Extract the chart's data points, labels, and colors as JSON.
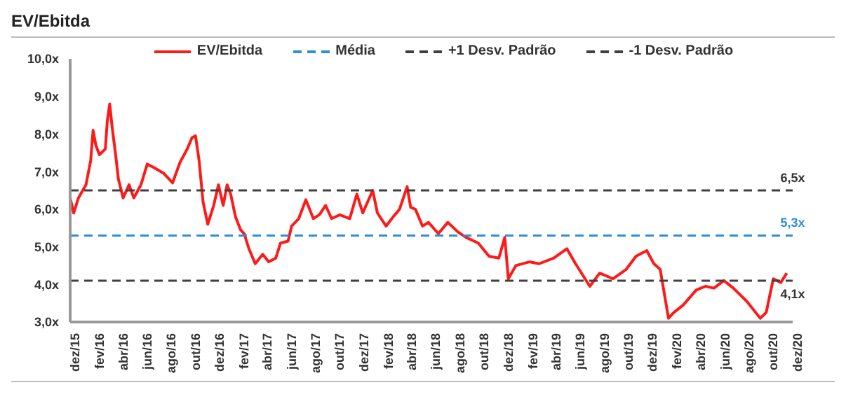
{
  "chart_data": {
    "type": "line",
    "title": "EV/Ebitda",
    "legend": "top",
    "grid": false,
    "line_style": "solid",
    "marker": "none",
    "xlim": [
      "2015-12-01",
      "2020-12-01"
    ],
    "xticks": [
      {
        "value": "2015-12",
        "label": "dez/15"
      },
      {
        "value": "2016-02",
        "label": "fev/16"
      },
      {
        "value": "2016-04",
        "label": "abr/16"
      },
      {
        "value": "2016-06",
        "label": "jun/16"
      },
      {
        "value": "2016-08",
        "label": "ago/16"
      },
      {
        "value": "2016-10",
        "label": "out/16"
      },
      {
        "value": "2016-12",
        "label": "dez/16"
      },
      {
        "value": "2017-02",
        "label": "fev/17"
      },
      {
        "value": "2017-04",
        "label": "abr/17"
      },
      {
        "value": "2017-06",
        "label": "jun/17"
      },
      {
        "value": "2017-08",
        "label": "ago/17"
      },
      {
        "value": "2017-10",
        "label": "out/17"
      },
      {
        "value": "2017-12",
        "label": "dez/17"
      },
      {
        "value": "2018-02",
        "label": "fev/18"
      },
      {
        "value": "2018-04",
        "label": "abr/18"
      },
      {
        "value": "2018-06",
        "label": "jun/18"
      },
      {
        "value": "2018-08",
        "label": "ago/18"
      },
      {
        "value": "2018-10",
        "label": "out/18"
      },
      {
        "value": "2018-12",
        "label": "dez/18"
      },
      {
        "value": "2019-02",
        "label": "fev/19"
      },
      {
        "value": "2019-04",
        "label": "abr/19"
      },
      {
        "value": "2019-06",
        "label": "jun/19"
      },
      {
        "value": "2019-08",
        "label": "ago/19"
      },
      {
        "value": "2019-10",
        "label": "out/19"
      },
      {
        "value": "2019-12",
        "label": "dez/19"
      },
      {
        "value": "2020-02",
        "label": "fev/20"
      },
      {
        "value": "2020-04",
        "label": "abr/20"
      },
      {
        "value": "2020-06",
        "label": "jun/20"
      },
      {
        "value": "2020-08",
        "label": "ago/20"
      },
      {
        "value": "2020-10",
        "label": "out/20"
      },
      {
        "value": "2020-12",
        "label": "dez/20"
      }
    ],
    "ylim": [
      3,
      10
    ],
    "yticks": [
      {
        "value": 3,
        "label": "3,0x"
      },
      {
        "value": 4,
        "label": "4,0x"
      },
      {
        "value": 5,
        "label": "5,0x"
      },
      {
        "value": 6,
        "label": "6,0x"
      },
      {
        "value": 7,
        "label": "7,0x"
      },
      {
        "value": 8,
        "label": "8,0x"
      },
      {
        "value": 9,
        "label": "9,0x"
      },
      {
        "value": 10,
        "label": "10,0x"
      }
    ],
    "series": [
      {
        "name": "EV/Ebitda",
        "color": "#ff1a1a",
        "x": [
          "2015-12-01",
          "2015-12-10",
          "2015-12-22",
          "2016-01-10",
          "2016-01-22",
          "2016-01-28",
          "2016-02-04",
          "2016-02-13",
          "2016-02-28",
          "2016-03-04",
          "2016-03-10",
          "2016-03-16",
          "2016-03-25",
          "2016-04-01",
          "2016-04-13",
          "2016-04-28",
          "2016-05-10",
          "2016-05-28",
          "2016-06-13",
          "2016-07-01",
          "2016-07-25",
          "2016-08-16",
          "2016-09-04",
          "2016-09-22",
          "2016-10-04",
          "2016-10-13",
          "2016-10-22",
          "2016-11-01",
          "2016-11-13",
          "2016-11-28",
          "2016-12-10",
          "2016-12-22",
          "2017-01-01",
          "2017-01-10",
          "2017-01-22",
          "2017-02-04",
          "2017-02-13",
          "2017-02-25",
          "2017-03-13",
          "2017-04-01",
          "2017-04-16",
          "2017-05-04",
          "2017-05-16",
          "2017-06-04",
          "2017-06-13",
          "2017-07-01",
          "2017-07-19",
          "2017-08-07",
          "2017-08-22",
          "2017-09-07",
          "2017-09-22",
          "2017-10-13",
          "2017-11-07",
          "2017-11-25",
          "2017-12-10",
          "2018-01-04",
          "2018-01-16",
          "2018-02-07",
          "2018-02-25",
          "2018-03-13",
          "2018-04-01",
          "2018-04-10",
          "2018-04-22",
          "2018-05-10",
          "2018-05-25",
          "2018-06-19",
          "2018-07-13",
          "2018-08-07",
          "2018-08-28",
          "2018-09-28",
          "2018-10-25",
          "2018-11-19",
          "2018-12-04",
          "2018-12-13",
          "2019-01-01",
          "2019-02-04",
          "2019-03-01",
          "2019-04-07",
          "2019-05-10",
          "2019-06-01",
          "2019-07-07",
          "2019-08-01",
          "2019-09-04",
          "2019-10-07",
          "2019-11-01",
          "2019-11-28",
          "2019-12-16",
          "2020-01-01",
          "2020-01-22",
          "2020-02-04",
          "2020-02-28",
          "2020-04-01",
          "2020-04-25",
          "2020-05-16",
          "2020-06-10",
          "2020-07-04",
          "2020-08-07",
          "2020-09-10",
          "2020-09-25",
          "2020-10-13",
          "2020-11-01",
          "2020-11-16"
        ],
        "values": [
          6.3,
          5.9,
          6.3,
          6.65,
          7.3,
          8.1,
          7.7,
          7.45,
          7.6,
          8.35,
          8.8,
          8.2,
          7.45,
          6.8,
          6.3,
          6.65,
          6.3,
          6.65,
          7.2,
          7.1,
          6.95,
          6.7,
          7.25,
          7.6,
          7.9,
          7.95,
          7.3,
          6.2,
          5.6,
          6.1,
          6.65,
          6.1,
          6.65,
          6.4,
          5.8,
          5.45,
          5.35,
          4.95,
          4.55,
          4.8,
          4.6,
          4.7,
          5.1,
          5.15,
          5.55,
          5.75,
          6.25,
          5.75,
          5.85,
          6.1,
          5.75,
          5.85,
          5.75,
          6.4,
          5.9,
          6.5,
          5.9,
          5.55,
          5.8,
          6.0,
          6.6,
          6.05,
          6.0,
          5.55,
          5.65,
          5.35,
          5.65,
          5.4,
          5.25,
          5.1,
          4.75,
          4.7,
          5.25,
          4.15,
          4.5,
          4.6,
          4.55,
          4.7,
          4.95,
          4.55,
          3.95,
          4.3,
          4.15,
          4.4,
          4.75,
          4.9,
          4.55,
          4.4,
          3.1,
          3.25,
          3.45,
          3.85,
          3.95,
          3.9,
          4.1,
          3.9,
          3.55,
          3.1,
          3.25,
          4.15,
          4.05,
          4.3
        ]
      },
      {
        "name": "Média",
        "color": "#2e8fd8",
        "line_style": "dashed",
        "x": [
          "2015-12-01",
          "2020-12-01"
        ],
        "values": [
          5.3,
          5.3
        ]
      },
      {
        "name": "+1 Desv. Padrão",
        "color": "#404040",
        "line_style": "dashed",
        "x": [
          "2015-12-01",
          "2020-12-01"
        ],
        "values": [
          6.5,
          6.5
        ]
      },
      {
        "name": "-1 Desv. Padrão",
        "color": "#404040",
        "line_style": "dashed",
        "x": [
          "2015-12-01",
          "2020-12-01"
        ],
        "values": [
          4.1,
          4.1
        ]
      }
    ],
    "annotations": [
      {
        "text": "6,5x",
        "x": "2020-12-01",
        "y": 6.5
      },
      {
        "text": "5,3x",
        "x": "2020-12-01",
        "y": 5.3
      },
      {
        "text": "4,1x",
        "x": "2020-12-01",
        "y": 4.1
      }
    ]
  }
}
